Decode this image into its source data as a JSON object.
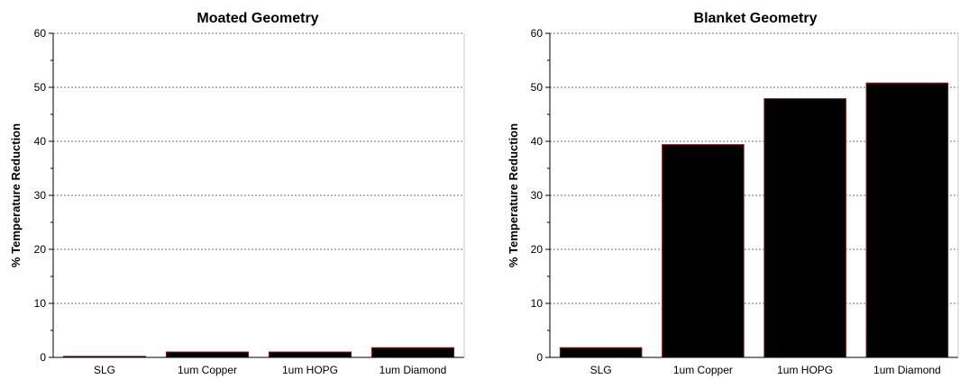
{
  "chart_data": [
    {
      "type": "bar",
      "title": "Moated Geometry",
      "ylabel": "% Temperature Reduction",
      "xlabel": "",
      "ylim": [
        0,
        60
      ],
      "yticks": [
        "0",
        "10",
        "20",
        "30",
        "40",
        "50",
        "60"
      ],
      "grid": true,
      "categories": [
        "SLG",
        "1um Copper",
        "1um HOPG",
        "1um Diamond"
      ],
      "values": [
        0.2,
        1.0,
        1.0,
        1.8
      ],
      "bar_color": "#000000",
      "bar_edge_color": "#8b1a1a"
    },
    {
      "type": "bar",
      "title": "Blanket Geometry",
      "ylabel": "% Temperature Reduction",
      "xlabel": "",
      "ylim": [
        0,
        60
      ],
      "yticks": [
        "0",
        "10",
        "20",
        "30",
        "40",
        "50",
        "60"
      ],
      "grid": true,
      "categories": [
        "SLG",
        "1um Copper",
        "1um HOPG",
        "1um Diamond"
      ],
      "values": [
        1.8,
        39.4,
        47.9,
        50.8
      ],
      "bar_color": "#000000",
      "bar_edge_color": "#8b1a1a"
    }
  ]
}
